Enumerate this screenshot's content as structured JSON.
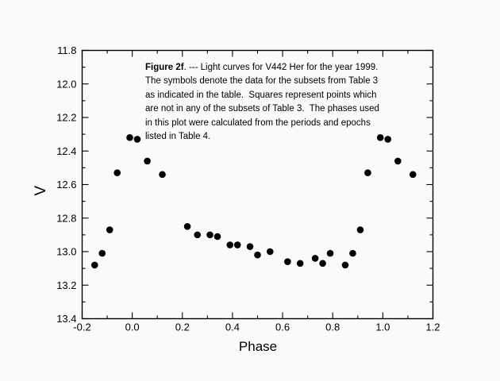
{
  "figure": {
    "caption": {
      "bold_prefix": "Figure 2f",
      "line1_rest": ". --- Light curves for V442 Her for the year 1999.",
      "lines": [
        "The symbols denote the data for the subsets from Table 3",
        "as indicated in the table.  Squares represent points which",
        "are not in any of the subsets of Table 3.  The phases used",
        "in this plot were calculated from the periods and epochs",
        "listed in Table 4."
      ]
    }
  },
  "chart_data": {
    "type": "scatter",
    "title": "",
    "xlabel": "Phase",
    "ylabel": "V",
    "xlim": [
      -0.2,
      1.2
    ],
    "y_top": 11.8,
    "y_bottom": 13.4,
    "y_axis_inverted_magnitudes": true,
    "x_tick_labels": [
      "-0.2",
      "0.0",
      "0.2",
      "0.4",
      "0.6",
      "0.8",
      "1.0",
      "1.2"
    ],
    "y_tick_labels": [
      "11.8",
      "12.0",
      "12.2",
      "12.4",
      "12.6",
      "12.8",
      "13.0",
      "13.2",
      "13.4"
    ],
    "x_minor_step": 0.1,
    "y_minor_step": 0.1,
    "grid": false,
    "legend": null,
    "marker": "filled-circle",
    "marker_color": "#000000",
    "frame_color": "#000000",
    "points": [
      [
        -0.15,
        13.08
      ],
      [
        -0.12,
        13.01
      ],
      [
        -0.09,
        12.87
      ],
      [
        -0.06,
        12.53
      ],
      [
        -0.01,
        12.32
      ],
      [
        0.02,
        12.33
      ],
      [
        0.06,
        12.46
      ],
      [
        0.12,
        12.54
      ],
      [
        0.22,
        12.85
      ],
      [
        0.26,
        12.9
      ],
      [
        0.31,
        12.9
      ],
      [
        0.34,
        12.91
      ],
      [
        0.39,
        12.96
      ],
      [
        0.42,
        12.96
      ],
      [
        0.47,
        12.97
      ],
      [
        0.5,
        13.02
      ],
      [
        0.55,
        13.0
      ],
      [
        0.62,
        13.06
      ],
      [
        0.67,
        13.07
      ],
      [
        0.73,
        13.04
      ],
      [
        0.76,
        13.07
      ],
      [
        0.79,
        13.01
      ],
      [
        0.85,
        13.08
      ],
      [
        0.88,
        13.01
      ],
      [
        0.91,
        12.87
      ],
      [
        0.94,
        12.53
      ],
      [
        0.99,
        12.32
      ],
      [
        1.02,
        12.33
      ],
      [
        1.06,
        12.46
      ],
      [
        1.12,
        12.54
      ]
    ]
  }
}
